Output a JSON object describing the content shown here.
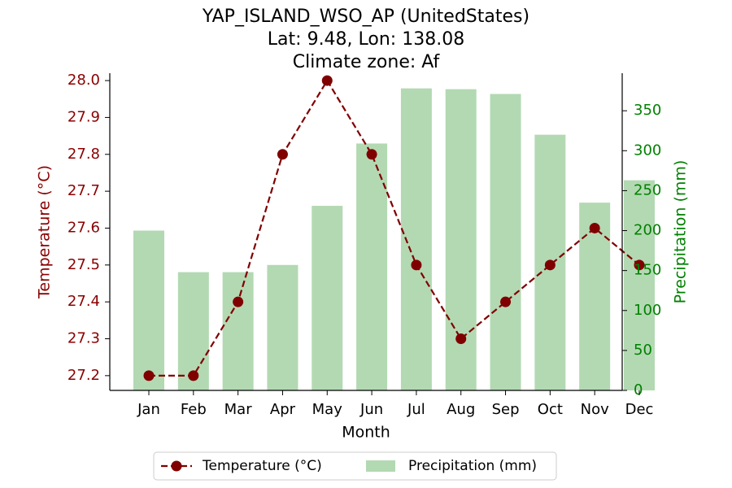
{
  "chart_data": {
    "type": "bar+line",
    "title_lines": [
      "YAP_ISLAND_WSO_AP (UnitedStates)",
      "Lat: 9.48, Lon: 138.08",
      "Climate zone: Af"
    ],
    "xlabel": "Month",
    "ylabel_left": "Temperature (°C)",
    "ylabel_right": "Precipitation (mm)",
    "categories": [
      "Jan",
      "Feb",
      "Mar",
      "Apr",
      "May",
      "Jun",
      "Jul",
      "Aug",
      "Sep",
      "Oct",
      "Nov",
      "Dec"
    ],
    "temperature": {
      "name": "Temperature (°C)",
      "values": [
        27.2,
        27.2,
        27.4,
        27.8,
        28.0,
        27.8,
        27.5,
        27.3,
        27.4,
        27.5,
        27.6,
        27.5
      ],
      "color": "#800000",
      "axis": "left",
      "style": "dashed-line-with-circle-markers"
    },
    "precipitation": {
      "name": "Precipitation (mm)",
      "values": [
        200,
        148,
        148,
        157,
        231,
        309,
        378,
        377,
        371,
        320,
        235,
        263
      ],
      "color": "#b3d9b3",
      "axis": "right",
      "style": "bar"
    },
    "ylim_left": [
      27.16,
      28.02
    ],
    "yticks_left": [
      "27.2",
      "27.3",
      "27.4",
      "27.5",
      "27.6",
      "27.7",
      "27.8",
      "27.9",
      "28.0"
    ],
    "left_axis_color": "#8b0000",
    "ylim_right": [
      0,
      397
    ],
    "yticks_right": [
      "0",
      "50",
      "100",
      "150",
      "200",
      "250",
      "300",
      "350"
    ],
    "right_axis_color": "#008000",
    "grid": false,
    "legend_position": "bottom-center",
    "legend": [
      {
        "label": "Temperature (°C)",
        "kind": "line"
      },
      {
        "label": "Precipitation (mm)",
        "kind": "bar"
      }
    ]
  }
}
